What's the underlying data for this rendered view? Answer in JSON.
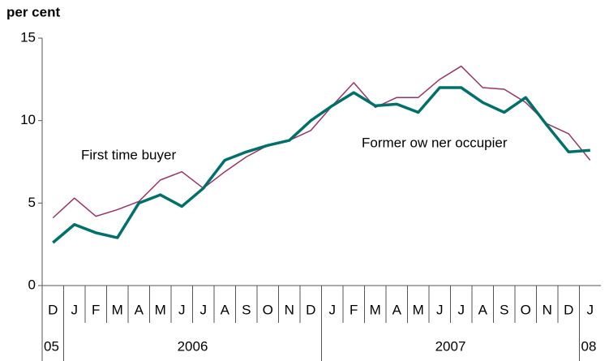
{
  "chart_data": {
    "type": "line",
    "y_label": "per cent",
    "categories": [
      "D",
      "J",
      "F",
      "M",
      "A",
      "M",
      "J",
      "J",
      "A",
      "S",
      "O",
      "N",
      "D",
      "J",
      "F",
      "M",
      "A",
      "M",
      "J",
      "J",
      "A",
      "S",
      "O",
      "N",
      "D",
      "J"
    ],
    "year_labels": [
      "05",
      "2006",
      "2007",
      "08"
    ],
    "series": [
      {
        "name": "First time buyer",
        "color": "#993366",
        "width": 1.5,
        "values": [
          4.1,
          5.3,
          4.2,
          4.6,
          5.1,
          6.4,
          6.9,
          5.9,
          6.9,
          7.8,
          8.5,
          8.8,
          9.4,
          10.9,
          12.3,
          10.8,
          11.4,
          11.4,
          12.5,
          13.3,
          12.0,
          11.9,
          11.1,
          9.8,
          9.2,
          7.6
        ]
      },
      {
        "name": "Former ow ner occupier",
        "color": "#00706b",
        "width": 3.5,
        "values": [
          2.6,
          3.7,
          3.2,
          2.9,
          5.0,
          5.5,
          4.8,
          5.9,
          7.6,
          8.1,
          8.5,
          8.8,
          10.0,
          10.9,
          11.7,
          10.9,
          11.0,
          10.5,
          12.0,
          12.0,
          11.1,
          10.5,
          11.4,
          9.7,
          8.1,
          8.2
        ]
      }
    ],
    "ylim": [
      0,
      15
    ],
    "yticks": [
      0,
      5,
      10,
      15
    ],
    "grid": false
  }
}
